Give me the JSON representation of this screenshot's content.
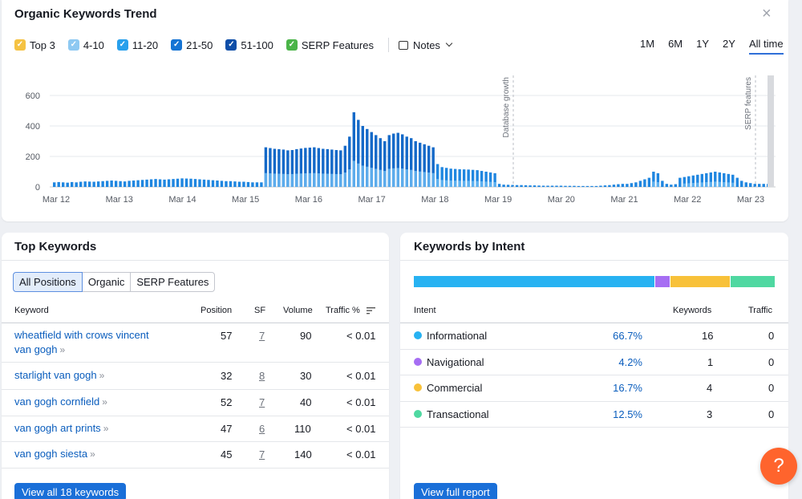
{
  "trend": {
    "title": "Organic Keywords Trend",
    "filters": [
      {
        "label": "Top 3",
        "color": "#f5c242"
      },
      {
        "label": "4-10",
        "color": "#8ec9f2"
      },
      {
        "label": "11-20",
        "color": "#28a0ec"
      },
      {
        "label": "21-50",
        "color": "#1574d4"
      },
      {
        "label": "51-100",
        "color": "#0e4ea8"
      },
      {
        "label": "SERP Features",
        "color": "#4ab448"
      }
    ],
    "notes_label": "Notes",
    "ranges": [
      "1M",
      "6M",
      "1Y",
      "2Y",
      "All time"
    ],
    "active_range": "All time"
  },
  "chart_data": {
    "type": "bar",
    "y_ticks": [
      "0",
      "200",
      "400",
      "600"
    ],
    "ylim": [
      0,
      700
    ],
    "x_labels": [
      "Mar 12",
      "Mar 13",
      "Mar 14",
      "Mar 15",
      "Mar 16",
      "Mar 17",
      "Mar 18",
      "Mar 19",
      "Mar 20",
      "Mar 21",
      "Mar 22",
      "Mar 23"
    ],
    "annotations": [
      "Database growth",
      "SERP features"
    ],
    "series": [
      {
        "values": [
          30,
          32,
          30,
          28,
          32,
          30,
          34,
          36,
          35,
          34,
          36,
          38,
          40,
          42,
          40,
          38,
          36,
          40,
          42,
          44,
          46,
          48,
          50,
          52,
          50,
          48,
          50,
          52,
          54,
          56,
          55,
          54,
          52,
          50,
          48,
          46,
          44,
          42,
          40,
          38,
          38,
          36,
          34,
          34,
          32,
          30,
          30,
          30,
          260,
          255,
          250,
          248,
          245,
          240,
          242,
          248,
          252,
          256,
          258,
          260,
          255,
          250,
          248,
          245,
          242,
          240,
          270,
          330,
          490,
          440,
          400,
          380,
          360,
          340,
          320,
          300,
          340,
          350,
          355,
          345,
          330,
          320,
          300,
          290,
          280,
          270,
          260,
          150,
          130,
          125,
          120,
          118,
          116,
          115,
          114,
          112,
          110,
          105,
          100,
          95,
          90,
          20,
          15,
          14,
          13,
          12,
          12,
          11,
          10,
          10,
          9,
          8,
          8,
          8,
          8,
          8,
          7,
          7,
          7,
          6,
          6,
          6,
          6,
          6,
          8,
          10,
          12,
          15,
          18,
          20,
          20,
          25,
          30,
          40,
          50,
          60,
          100,
          90,
          40,
          20,
          15,
          18,
          60,
          65,
          70,
          75,
          80,
          85,
          90,
          95,
          100,
          95,
          90,
          85,
          80,
          60,
          40,
          30,
          25,
          20,
          20,
          20,
          20,
          20
        ]
      }
    ]
  },
  "top_keywords": {
    "title": "Top Keywords",
    "tabs": [
      "All Positions",
      "Organic",
      "SERP Features"
    ],
    "active_tab": "All Positions",
    "columns": [
      "Keyword",
      "Position",
      "SF",
      "Volume",
      "Traffic %"
    ],
    "rows": [
      {
        "keyword_line1": "wheatfield with crows vincent",
        "keyword_line2": "van gogh",
        "position": "57",
        "sf": "7",
        "volume": "90",
        "traffic": "< 0.01"
      },
      {
        "keyword_line1": "starlight van gogh",
        "position": "32",
        "sf": "8",
        "volume": "30",
        "traffic": "< 0.01"
      },
      {
        "keyword_line1": "van gogh cornfield",
        "position": "52",
        "sf": "7",
        "volume": "40",
        "traffic": "< 0.01"
      },
      {
        "keyword_line1": "van gogh art prints",
        "position": "47",
        "sf": "6",
        "volume": "110",
        "traffic": "< 0.01"
      },
      {
        "keyword_line1": "van gogh siesta",
        "position": "45",
        "sf": "7",
        "volume": "140",
        "traffic": "< 0.01"
      }
    ],
    "view_all_label": "View all 18 keywords"
  },
  "intent": {
    "title": "Keywords by Intent",
    "columns": [
      "Intent",
      "Keywords",
      "Traffic"
    ],
    "rows": [
      {
        "label": "Informational",
        "color": "#27b2f2",
        "pct": "66.7%",
        "share": 0.667,
        "keywords": "16",
        "traffic": "0"
      },
      {
        "label": "Navigational",
        "color": "#a66ef3",
        "pct": "4.2%",
        "share": 0.042,
        "keywords": "1",
        "traffic": "0"
      },
      {
        "label": "Commercial",
        "color": "#f8c139",
        "pct": "16.7%",
        "share": 0.167,
        "keywords": "4",
        "traffic": "0"
      },
      {
        "label": "Transactional",
        "color": "#4fd8a1",
        "pct": "12.5%",
        "share": 0.125,
        "keywords": "3",
        "traffic": "0"
      }
    ],
    "view_full_label": "View full report"
  },
  "help_label": "?",
  "close_label": "×"
}
